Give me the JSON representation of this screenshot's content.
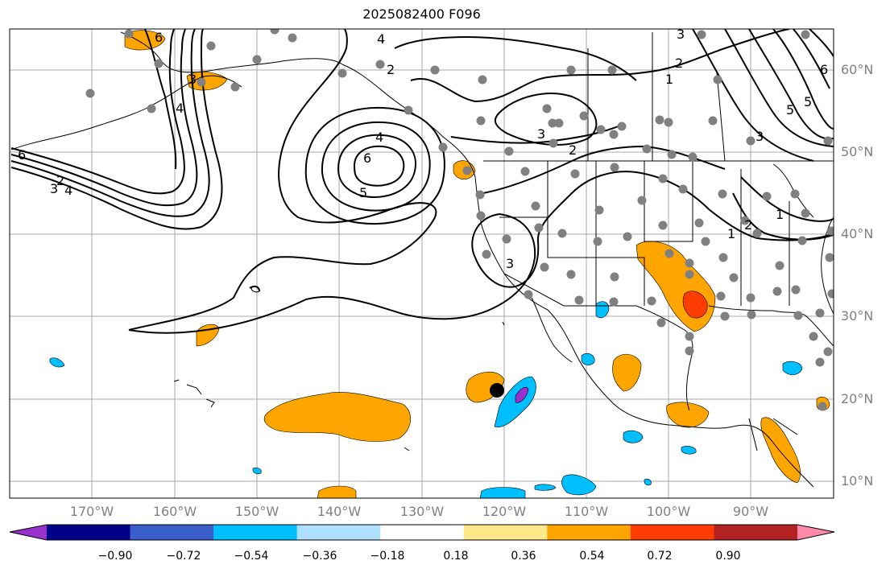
{
  "title": "2025082400 F096",
  "lat_labels": [
    "60°N",
    "50°N",
    "40°N",
    "30°N",
    "20°N",
    "10°N"
  ],
  "lon_labels": [
    "170°W",
    "160°W",
    "150°W",
    "140°W",
    "130°W",
    "120°W",
    "110°W",
    "100°W",
    "90°W"
  ],
  "contour_labels": [
    "6",
    "5",
    "4",
    "3",
    "2",
    "1",
    "6",
    "5",
    "4",
    "3",
    "2",
    "1",
    "3",
    "2",
    "1",
    "2",
    "3",
    "4",
    "5",
    "6",
    "4",
    "3",
    "6",
    "3",
    "2"
  ],
  "colorbar": {
    "ticks": [
      "−0.90",
      "−0.72",
      "−0.54",
      "−0.36",
      "−0.18",
      "0.18",
      "0.36",
      "0.54",
      "0.72",
      "0.90"
    ],
    "colors": [
      "#9932cc",
      "#00008b",
      "#3a5fcd",
      "#00bfff",
      "#b0e0ff",
      "#ffffff",
      "#ffe98a",
      "#ffa500",
      "#ff3d00",
      "#b22222",
      "#ff88aa"
    ]
  },
  "marker_colors": {
    "station": "#808080",
    "center": "#000000"
  }
}
